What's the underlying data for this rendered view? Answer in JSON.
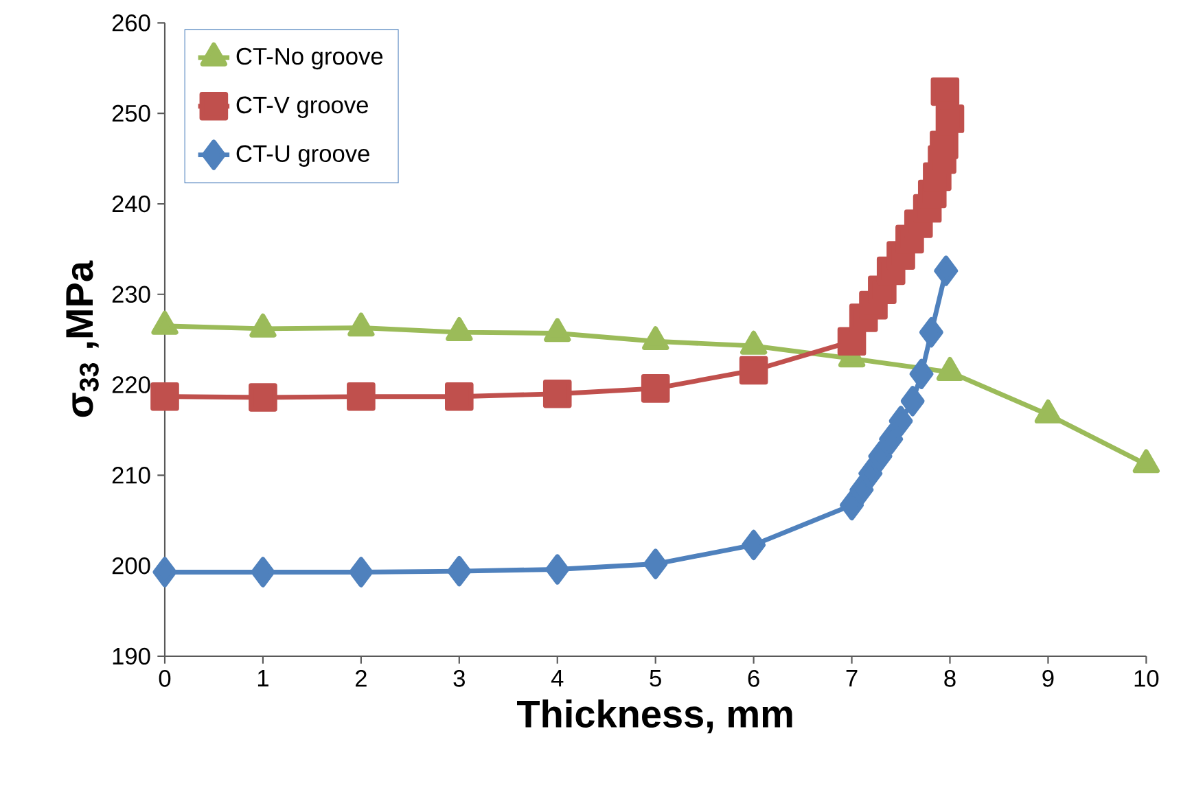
{
  "chart_data": {
    "type": "line",
    "xlabel": "Thickness, mm",
    "ylabel": "σ$_{33}$ ,MPa",
    "xlim": [
      0,
      10
    ],
    "xticks": [
      0,
      1,
      2,
      3,
      4,
      5,
      6,
      7,
      8,
      9,
      10
    ],
    "ylim": [
      190,
      260
    ],
    "yticks": [
      190,
      200,
      210,
      220,
      230,
      240,
      250,
      260
    ],
    "grid": false,
    "legend": "top left",
    "series": [
      {
        "name": "CT-No groove",
        "color": "#9bbb59",
        "marker": "triangle",
        "x": [
          0,
          1,
          2,
          3,
          4,
          5,
          6,
          7,
          8,
          9,
          10
        ],
        "values": [
          226.5,
          226.2,
          226.3,
          225.8,
          225.7,
          224.8,
          224.3,
          222.9,
          221.4,
          216.7,
          211.2
        ]
      },
      {
        "name": "CT-V groove",
        "color": "#c0504d",
        "marker": "square",
        "x": [
          0,
          1,
          2,
          3,
          4,
          5,
          6,
          7.0,
          7.12,
          7.22,
          7.31,
          7.4,
          7.5,
          7.59,
          7.68,
          7.77,
          7.82,
          7.87,
          7.92,
          7.94,
          7.95,
          8.0
        ],
        "values": [
          218.7,
          218.6,
          218.7,
          218.7,
          219.0,
          219.6,
          221.6,
          224.8,
          227.4,
          228.8,
          230.5,
          232.6,
          234.3,
          236.1,
          237.8,
          239.5,
          241.1,
          243.0,
          244.9,
          246.5,
          252.4,
          249.4
        ]
      },
      {
        "name": "CT-U groove",
        "color": "#4f81bd",
        "marker": "diamond",
        "x": [
          0,
          1,
          2,
          3,
          4,
          5,
          6,
          7.0,
          7.1,
          7.19,
          7.29,
          7.4,
          7.5,
          7.62,
          7.71,
          7.81,
          7.96
        ],
        "values": [
          199.3,
          199.3,
          199.3,
          199.4,
          199.6,
          200.2,
          202.3,
          206.7,
          208.4,
          210.2,
          212.1,
          214.0,
          216.0,
          218.2,
          221.2,
          225.8,
          232.6
        ]
      }
    ]
  }
}
